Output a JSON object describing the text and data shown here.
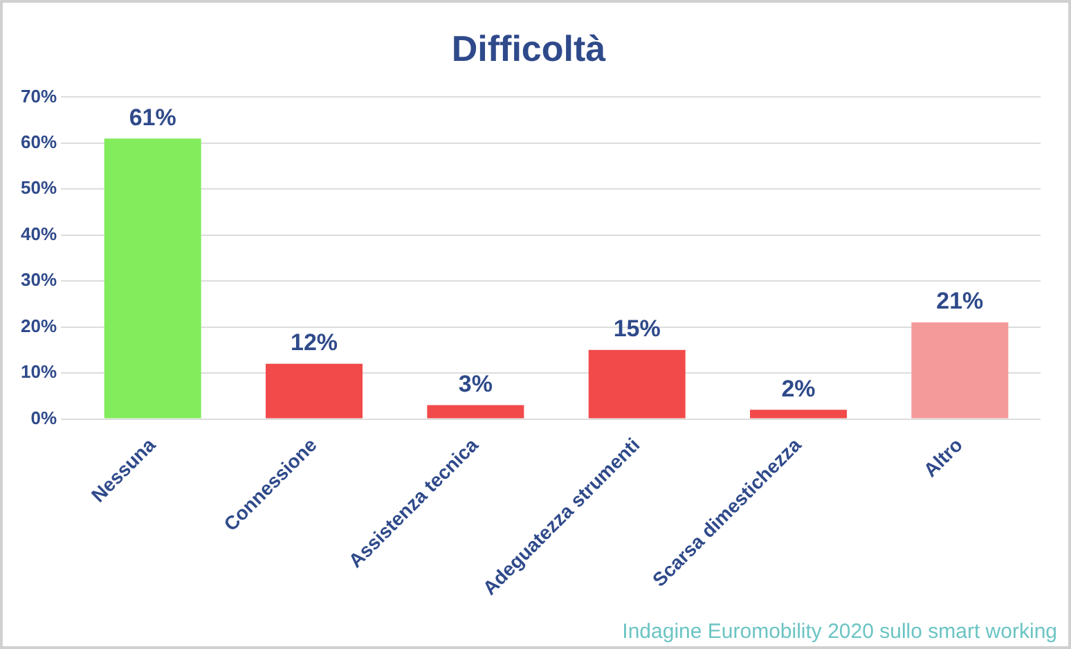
{
  "chart_data": {
    "type": "bar",
    "title": "Difficoltà",
    "categories": [
      "Nessuna",
      "Connessione",
      "Assistenza tecnica",
      "Adeguatezza strumenti",
      "Scarsa dimestichezza",
      "Altro"
    ],
    "values": [
      61,
      12,
      3,
      15,
      2,
      21
    ],
    "colors": [
      "#82ec5c",
      "#f24a4a",
      "#f24a4a",
      "#f24a4a",
      "#f24a4a",
      "#f59a9a"
    ],
    "value_labels": [
      "61%",
      "12%",
      "3%",
      "15%",
      "2%",
      "21%"
    ],
    "ylim": [
      0,
      70
    ],
    "yticks": [
      {
        "value": 0,
        "label": "0%"
      },
      {
        "value": 10,
        "label": "10%"
      },
      {
        "value": 20,
        "label": "20%"
      },
      {
        "value": 30,
        "label": "30%"
      },
      {
        "value": 40,
        "label": "40%"
      },
      {
        "value": 50,
        "label": "50%"
      },
      {
        "value": 60,
        "label": "60%"
      },
      {
        "value": 70,
        "label": "70%"
      }
    ],
    "grid": "y",
    "annotations": [
      "Indagine Euromobility 2020 sullo smart working"
    ]
  }
}
